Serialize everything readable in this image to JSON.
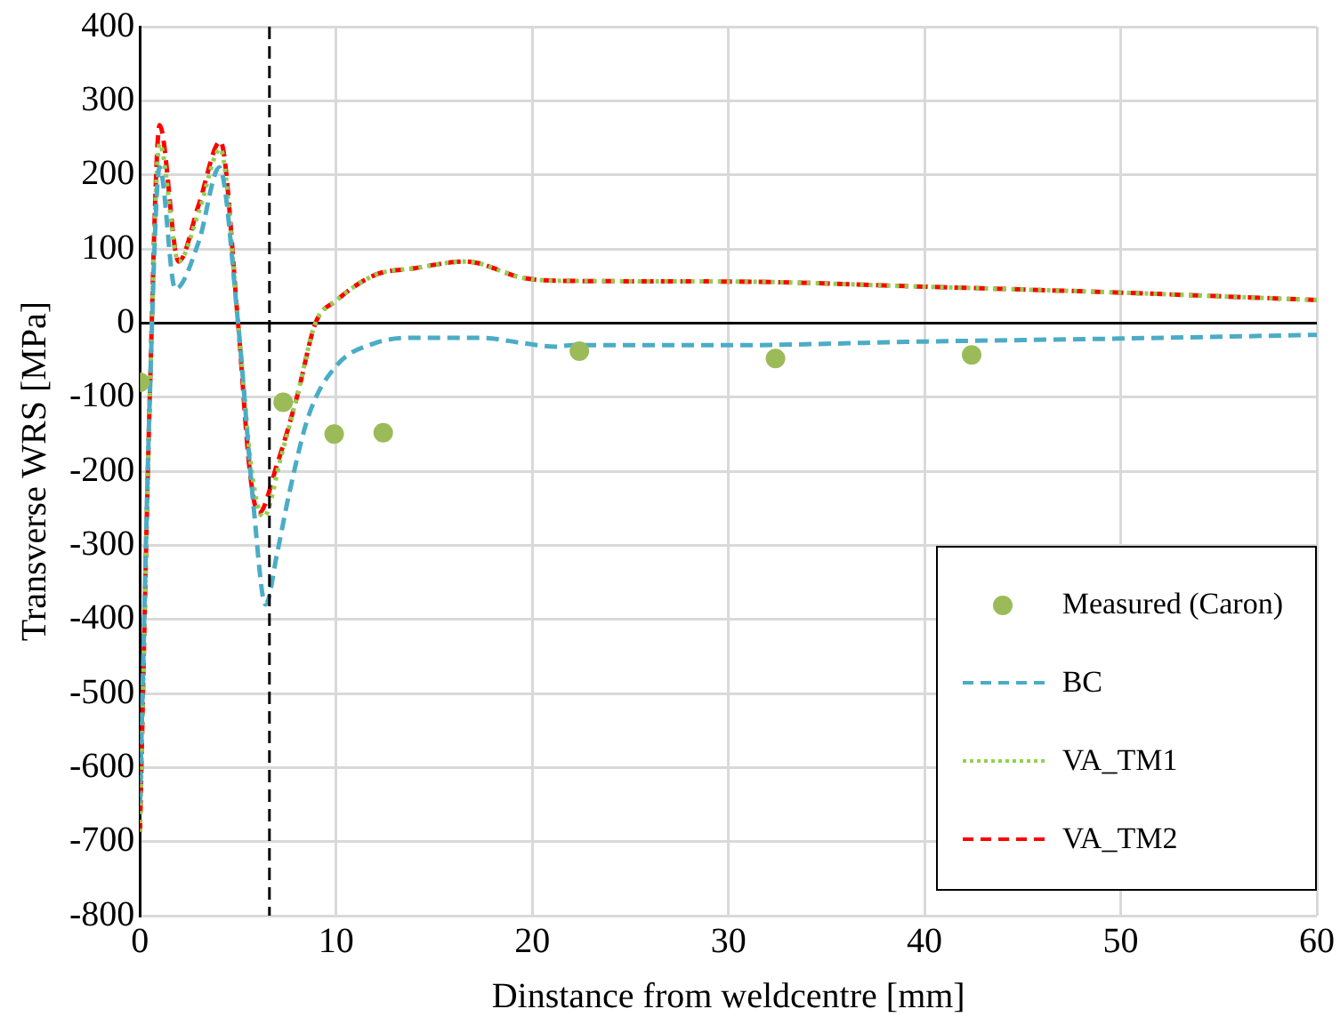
{
  "chart_data": {
    "type": "line",
    "xlabel": "Dinstance from weldcentre [mm]",
    "ylabel": "Transverse WRS [MPa]",
    "xlim": [
      0,
      60
    ],
    "xticks": [
      0,
      10,
      20,
      30,
      40,
      50,
      60
    ],
    "ylim": [
      -800,
      400
    ],
    "yticks": [
      -800,
      -700,
      -600,
      -500,
      -400,
      -300,
      -200,
      -100,
      0,
      100,
      200,
      300,
      400
    ],
    "grid": true,
    "legend": "bottom right",
    "ref_lines": [
      {
        "axis": "x",
        "value": 6.6,
        "color": "#000000",
        "line_style": "dashed"
      }
    ],
    "series": [
      {
        "name": "Measured (Caron)",
        "type": "scatter",
        "marker": "circle",
        "color": "#9bbb59",
        "x": [
          0,
          7.3,
          9.9,
          12.4,
          22.4,
          32.4,
          42.4
        ],
        "values": [
          -80,
          -107,
          -150,
          -148,
          -38,
          -48,
          -43
        ]
      },
      {
        "name": "BC",
        "marker": "none",
        "line_style": "dashed",
        "color": "#4bacc6",
        "x": [
          0,
          0.5,
          1,
          1.8,
          3,
          4.05,
          5,
          5.8,
          6.4,
          7,
          7.6,
          8.6,
          10,
          12,
          14,
          17.4,
          19.5,
          21.2,
          22,
          30,
          40,
          50,
          60
        ],
        "values": [
          -648,
          -100,
          210,
          46,
          110,
          210,
          0,
          -250,
          -380,
          -310,
          -231,
          -125,
          -58,
          -27,
          -20,
          -20,
          -27,
          -32,
          -30,
          -30,
          -25,
          -21,
          -16
        ]
      },
      {
        "name": "VA_TM1",
        "marker": "none",
        "line_style": "dotted",
        "color": "#92d050",
        "x": [
          0,
          0.5,
          1,
          1.97,
          3,
          4.1,
          5,
          5.7,
          6.3,
          7.2,
          8,
          8.95,
          10,
          12,
          14,
          16.6,
          19.5,
          21.2,
          30,
          40,
          50,
          60
        ],
        "values": [
          -687,
          -100,
          242,
          83,
          150,
          235,
          0,
          -200,
          -262,
          -180,
          -100,
          0,
          30,
          65,
          74,
          83,
          61,
          57,
          56,
          49,
          41,
          31
        ]
      },
      {
        "name": "VA_TM2",
        "marker": "none",
        "line_style": "dashed",
        "color": "#ff0000",
        "x": [
          0,
          0.5,
          1,
          1.97,
          3,
          4.1,
          5,
          5.6,
          6.05,
          7,
          8,
          8.95,
          10,
          12,
          14,
          16.6,
          19.5,
          21.2,
          30,
          40,
          50,
          60
        ],
        "values": [
          -687,
          -100,
          267,
          83,
          160,
          245,
          0,
          -200,
          -257,
          -190,
          -100,
          0,
          30,
          65,
          74,
          83,
          61,
          57,
          56,
          49,
          41,
          31
        ]
      }
    ]
  }
}
